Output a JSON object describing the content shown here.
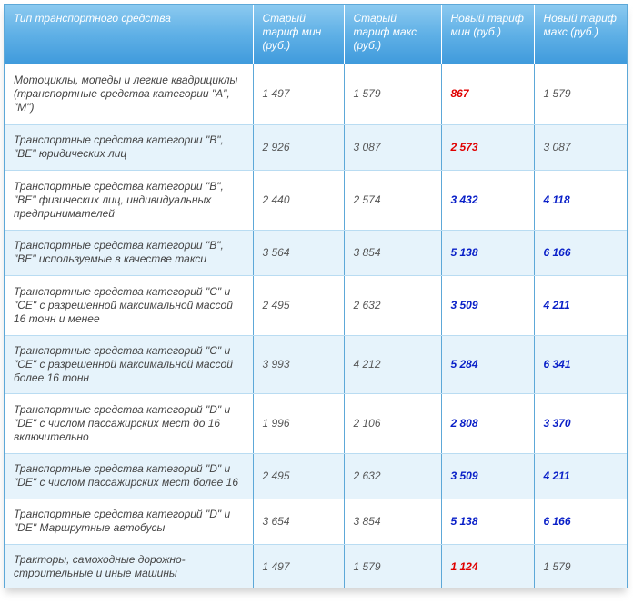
{
  "header": {
    "type": "Тип транспортного средства",
    "old_min": "Старый тариф мин (руб.)",
    "old_max": "Старый тариф макс (руб.)",
    "new_min": "Новый тариф мин (руб.)",
    "new_max": "Новый тариф макс (руб.)"
  },
  "colors": {
    "decrease": "#e00000",
    "increase": "#0a20c8",
    "header": "#5fb0e6"
  },
  "rows": [
    {
      "type": "Мотоциклы, мопеды и легкие квадрициклы (транспортные средства категории \"A\", \"M\")",
      "old_min": "1 497",
      "old_max": "1 579",
      "new_min": "867",
      "new_max": "1 579"
    },
    {
      "type": "Транспортные средства категории \"B\", \"BE\" юридических лиц",
      "old_min": "2 926",
      "old_max": "3 087",
      "new_min": "2 573",
      "new_max": "3 087"
    },
    {
      "type": "Транспортные средства категории \"B\", \"BE\" физических лиц, индивидуальных предпринимателей",
      "old_min": "2 440",
      "old_max": "2 574",
      "new_min": "3 432",
      "new_max": "4 118"
    },
    {
      "type": "Транспортные средства категории \"B\", \"BE\" используемые в качестве такси",
      "old_min": "3 564",
      "old_max": "3 854",
      "new_min": "5 138",
      "new_max": "6 166"
    },
    {
      "type": "Транспортные средства категорий \"C\" и \"CE\" с разрешенной максимальной массой 16 тонн и менее",
      "old_min": "2 495",
      "old_max": "2 632",
      "new_min": "3 509",
      "new_max": "4 211"
    },
    {
      "type": "Транспортные средства категорий \"C\" и \"CE\" с разрешенной максимальной массой более 16 тонн",
      "old_min": "3 993",
      "old_max": "4 212",
      "new_min": "5 284",
      "new_max": "6 341"
    },
    {
      "type": "Транспортные средства категорий \"D\" и \"DE\" с числом пассажирских мест до 16 включительно",
      "old_min": "1 996",
      "old_max": "2 106",
      "new_min": "2 808",
      "new_max": "3 370"
    },
    {
      "type": "Транспортные средства категорий \"D\" и \"DE\" с числом пассажирских мест более 16",
      "old_min": "2 495",
      "old_max": "2 632",
      "new_min": "3 509",
      "new_max": "4 211"
    },
    {
      "type": "Транспортные средства категорий \"D\" и \"DE\" Маршрутные автобусы",
      "old_min": "3 654",
      "old_max": "3 854",
      "new_min": "5 138",
      "new_max": "6 166"
    },
    {
      "type": "Тракторы, самоходные дорожно-строительные и иные машины",
      "old_min": "1 497",
      "old_max": "1 579",
      "new_min": "1 124",
      "new_max": "1 579"
    }
  ]
}
